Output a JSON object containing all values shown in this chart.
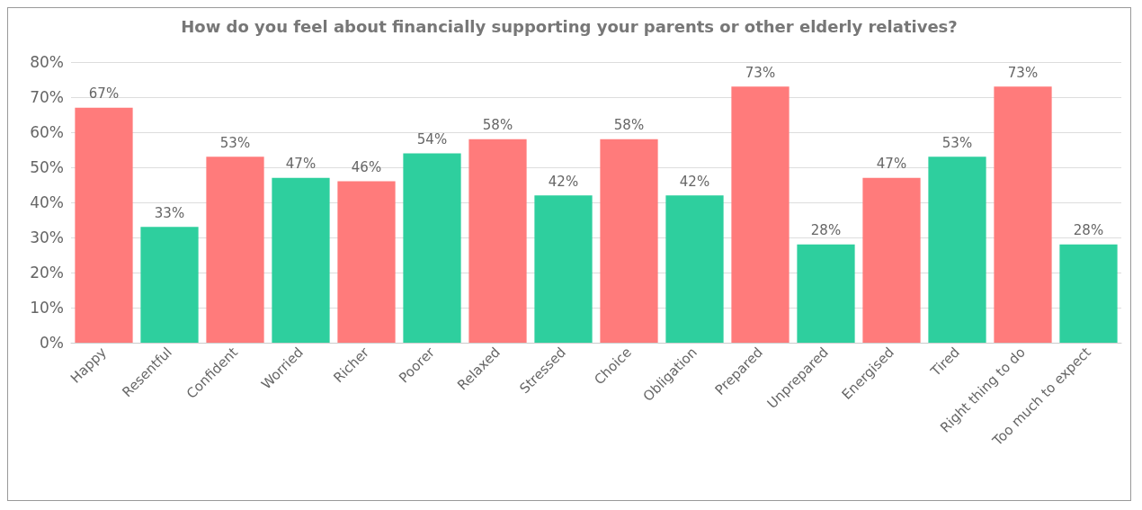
{
  "chart_data": {
    "type": "bar",
    "title": "How do you feel about financially supporting your parents or other elderly relatives?",
    "categories": [
      "Happy",
      "Resentful",
      "Confident",
      "Worried",
      "Richer",
      "Poorer",
      "Relaxed",
      "Stressed",
      "Choice",
      "Obligation",
      "Prepared",
      "Unprepared",
      "Energised",
      "Tired",
      "Right thing to do",
      "Too much to expect"
    ],
    "values": [
      67,
      33,
      53,
      47,
      46,
      54,
      58,
      42,
      58,
      42,
      73,
      28,
      47,
      53,
      73,
      28
    ],
    "value_labels": [
      "67%",
      "33%",
      "53%",
      "47%",
      "46%",
      "54%",
      "58%",
      "42%",
      "58%",
      "42%",
      "73%",
      "28%",
      "47%",
      "53%",
      "73%",
      "28%"
    ],
    "colors": [
      "#ff7b7b",
      "#2ecf9e",
      "#ff7b7b",
      "#2ecf9e",
      "#ff7b7b",
      "#2ecf9e",
      "#ff7b7b",
      "#2ecf9e",
      "#ff7b7b",
      "#2ecf9e",
      "#ff7b7b",
      "#2ecf9e",
      "#ff7b7b",
      "#2ecf9e",
      "#ff7b7b",
      "#2ecf9e"
    ],
    "ylim": [
      0,
      80
    ],
    "yticks": [
      {
        "value": 0,
        "label": "0%"
      },
      {
        "value": 10,
        "label": "10%"
      },
      {
        "value": 20,
        "label": "20%"
      },
      {
        "value": 30,
        "label": "30%"
      },
      {
        "value": 40,
        "label": "40%"
      },
      {
        "value": 50,
        "label": "50%"
      },
      {
        "value": 60,
        "label": "60%"
      },
      {
        "value": 70,
        "label": "70%"
      },
      {
        "value": 80,
        "label": "80%"
      }
    ],
    "grid": "y"
  }
}
